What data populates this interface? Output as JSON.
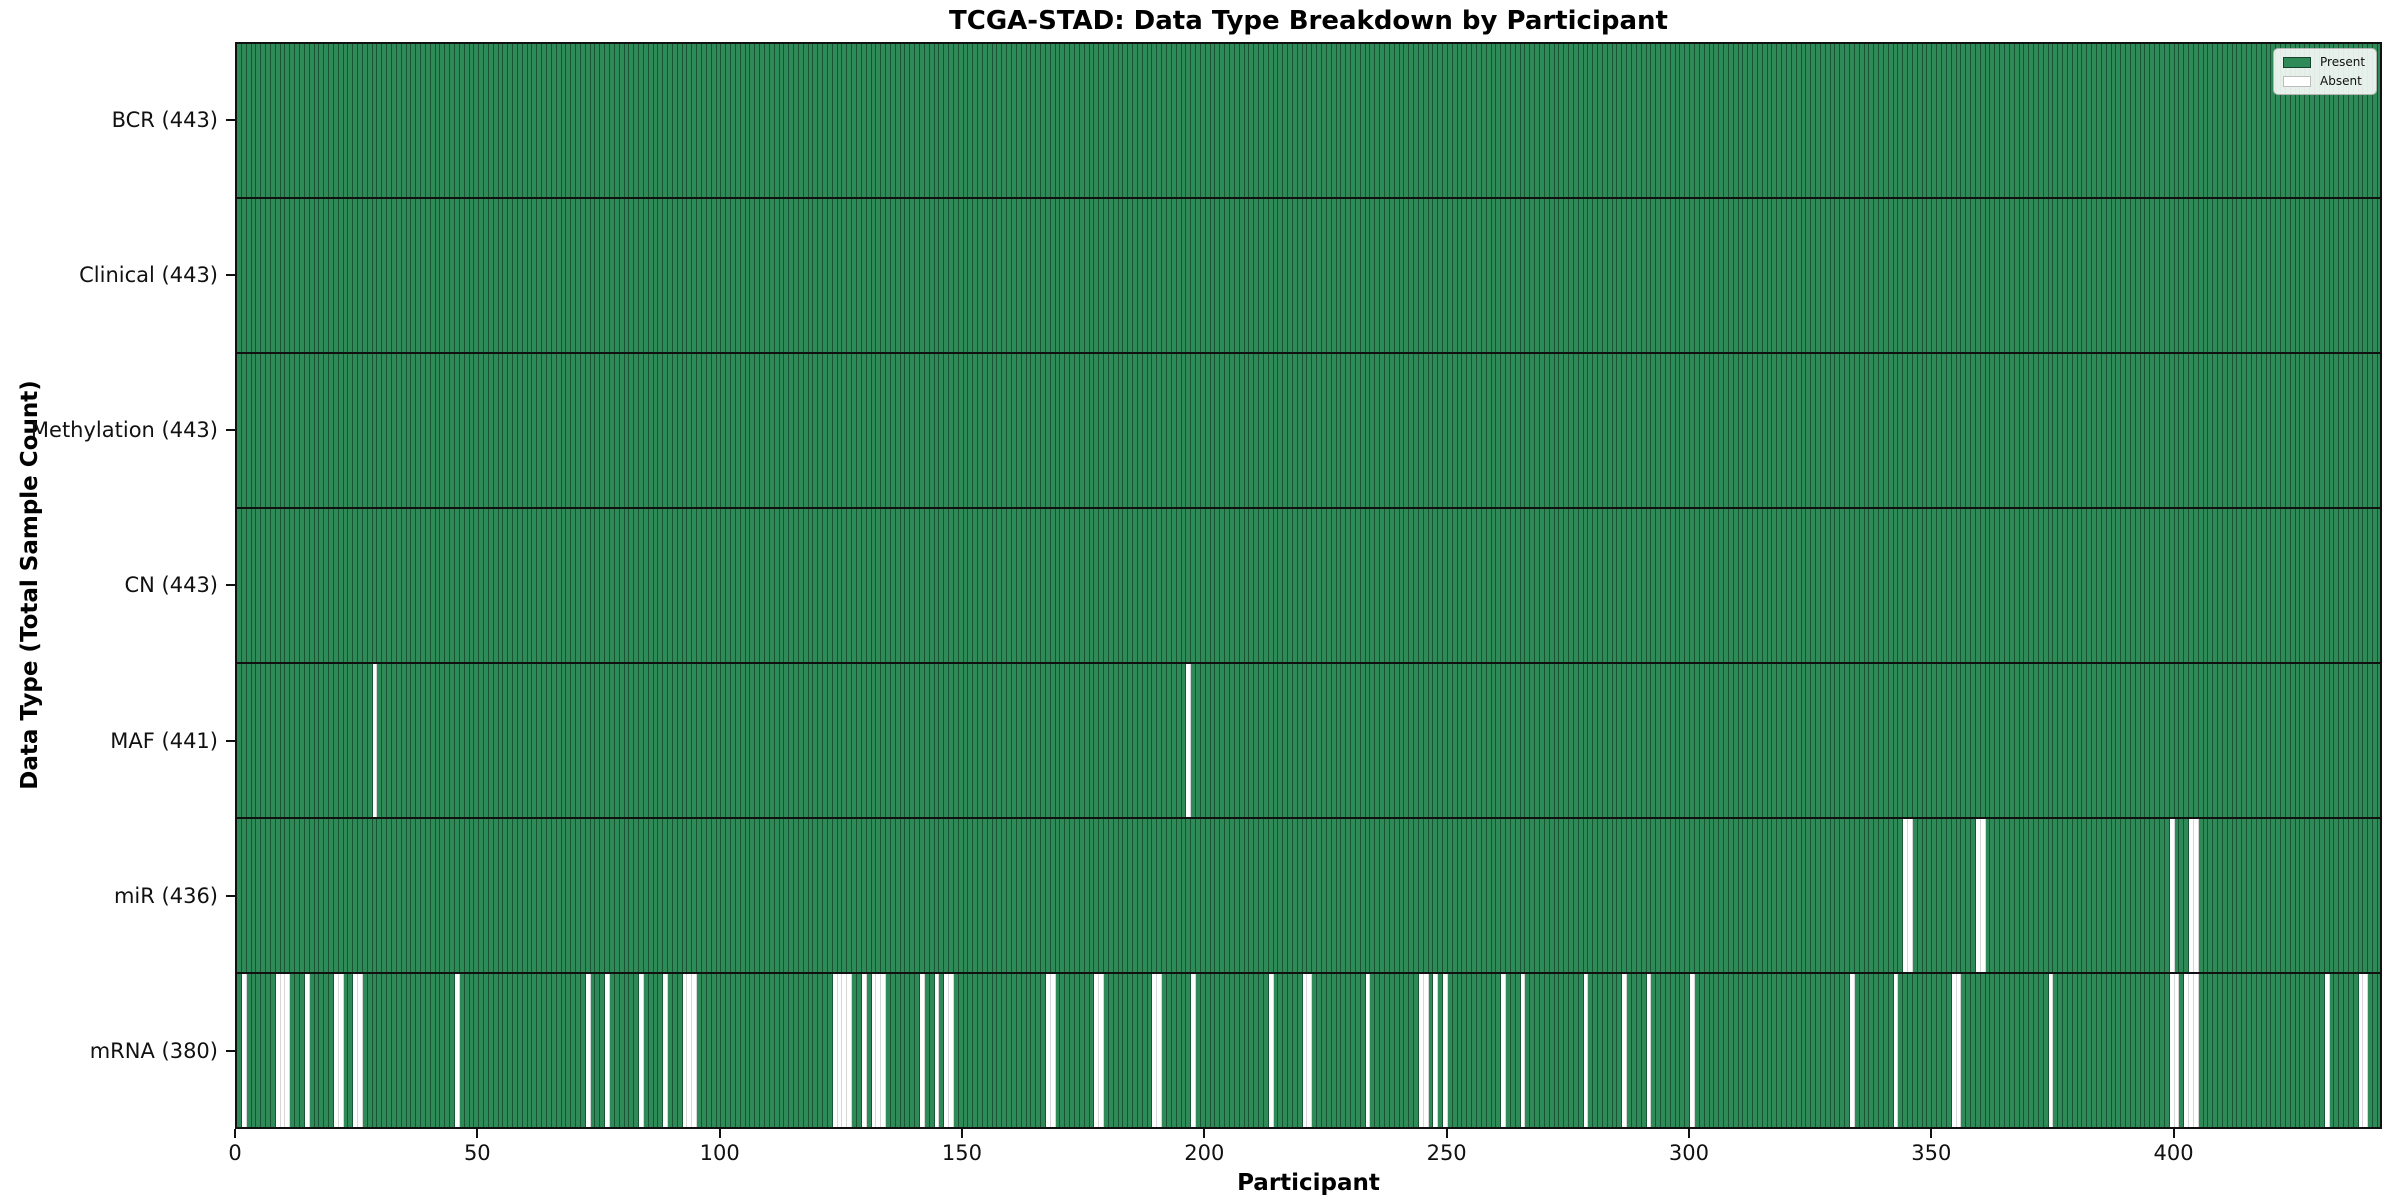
{
  "title": "TCGA-STAD: Data Type Breakdown by Participant",
  "axes": {
    "xlabel": "Participant",
    "ylabel": "Data Type (Total Sample Count)"
  },
  "legend": {
    "items": [
      {
        "label": "Present",
        "color": "#2e8b57",
        "edge": "#16432b"
      },
      {
        "label": "Absent",
        "color": "#ffffff",
        "edge": "#bdbdbd"
      }
    ]
  },
  "chart_data": {
    "type": "heatmap",
    "title": "TCGA-STAD: Data Type Breakdown by Participant",
    "xlabel": "Participant",
    "ylabel": "Data Type (Total Sample Count)",
    "legend_position": "upper right",
    "legend_entries": [
      "Present",
      "Absent"
    ],
    "present_color": "#2e8b57",
    "absent_color": "#ffffff",
    "grid": false,
    "n_participants": 443,
    "xlim": [
      0,
      443
    ],
    "xticks": [
      0,
      50,
      100,
      150,
      200,
      250,
      300,
      350,
      400
    ],
    "rows": [
      {
        "key": "bcr",
        "label": "BCR (443)",
        "data_type": "BCR",
        "present_count": 443,
        "absent_participants": []
      },
      {
        "key": "clinical",
        "label": "Clinical (443)",
        "data_type": "Clinical",
        "present_count": 443,
        "absent_participants": []
      },
      {
        "key": "methylation",
        "label": "Methylation (443)",
        "data_type": "Methylation",
        "present_count": 443,
        "absent_participants": []
      },
      {
        "key": "cn",
        "label": "CN (443)",
        "data_type": "CN",
        "present_count": 443,
        "absent_participants": []
      },
      {
        "key": "maf",
        "label": "MAF (441)",
        "data_type": "MAF",
        "present_count": 441,
        "absent_participants": [
          28,
          196
        ]
      },
      {
        "key": "mir",
        "label": "miR (436)",
        "data_type": "miR",
        "present_count": 436,
        "absent_participants": [
          344,
          345,
          359,
          360,
          399,
          403,
          404
        ]
      },
      {
        "key": "mrna",
        "label": "mRNA (380)",
        "data_type": "mRNA",
        "present_count": 380,
        "absent_participants": [
          1,
          8,
          9,
          10,
          14,
          20,
          21,
          24,
          25,
          45,
          72,
          76,
          83,
          88,
          92,
          93,
          94,
          123,
          124,
          125,
          126,
          129,
          131,
          132,
          133,
          141,
          144,
          146,
          147,
          167,
          168,
          177,
          178,
          189,
          190,
          197,
          213,
          220,
          221,
          233,
          244,
          245,
          247,
          249,
          261,
          265,
          278,
          286,
          291,
          300,
          333,
          342,
          354,
          355,
          374,
          399,
          400,
          402,
          403,
          404,
          431,
          438,
          439
        ]
      }
    ]
  }
}
